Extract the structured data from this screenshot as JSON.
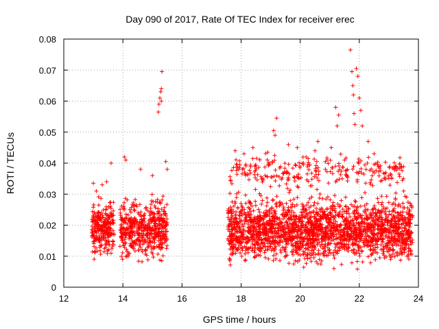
{
  "chart_data": {
    "type": "scatter",
    "title": "Day 090 of 2017, Rate Of TEC Index for receiver erec",
    "xlabel": "GPS time / hours",
    "ylabel": "ROTI / TECUs",
    "xlim": [
      12,
      24
    ],
    "ylim": [
      0,
      0.08
    ],
    "xticks": [
      12,
      14,
      16,
      18,
      20,
      22,
      24
    ],
    "yticks": [
      0,
      0.01,
      0.02,
      0.03,
      0.04,
      0.05,
      0.06,
      0.07,
      0.08
    ],
    "xtick_labels": [
      "12",
      "14",
      "16",
      "18",
      "20",
      "22",
      "24"
    ],
    "ytick_labels": [
      "0",
      "0.01",
      "0.02",
      "0.03",
      "0.04",
      "0.05",
      "0.06",
      "0.07",
      "0.08"
    ],
    "grid": true,
    "marker": "+",
    "color": "#ff0000",
    "series": [
      {
        "clusters": [
          {
            "x_range": [
              12.95,
              13.7
            ],
            "y_range": [
              0.008,
              0.03
            ],
            "count": 260
          },
          {
            "x_range": [
              13.9,
              15.5
            ],
            "y_range": [
              0.006,
              0.032
            ],
            "count": 520
          },
          {
            "x_range": [
              17.55,
              23.8
            ],
            "y_range": [
              0.005,
              0.032
            ],
            "count": 2200
          },
          {
            "x_range": [
              17.6,
              23.5
            ],
            "y_range": [
              0.03,
              0.045
            ],
            "count": 260
          }
        ],
        "x": [
          13.0,
          13.1,
          13.3,
          13.45,
          13.6,
          14.05,
          14.1,
          14.6,
          15.0,
          15.2,
          15.22,
          15.25,
          15.28,
          15.3,
          15.3,
          15.32,
          15.45,
          15.5,
          17.8,
          18.1,
          18.4,
          18.9,
          19.1,
          19.2,
          19.15,
          19.6,
          19.9,
          20.2,
          20.5,
          20.6,
          21.05,
          21.2,
          21.25,
          21.3,
          21.5,
          21.7,
          21.75,
          21.78,
          21.8,
          21.82,
          21.85,
          21.9,
          21.95,
          22.0,
          22.05,
          22.1,
          22.3,
          22.5,
          23.0,
          23.5,
          23.6
        ],
        "y": [
          0.0335,
          0.031,
          0.033,
          0.034,
          0.04,
          0.042,
          0.041,
          0.038,
          0.036,
          0.0565,
          0.059,
          0.061,
          0.063,
          0.064,
          0.06,
          0.0695,
          0.0405,
          0.038,
          0.044,
          0.043,
          0.045,
          0.0435,
          0.0505,
          0.0545,
          0.049,
          0.046,
          0.045,
          0.042,
          0.044,
          0.047,
          0.045,
          0.058,
          0.052,
          0.0555,
          0.041,
          0.0765,
          0.0695,
          0.065,
          0.062,
          0.056,
          0.0525,
          0.0705,
          0.068,
          0.061,
          0.057,
          0.052,
          0.047,
          0.043,
          0.035,
          0.031,
          0.029
        ]
      }
    ]
  }
}
